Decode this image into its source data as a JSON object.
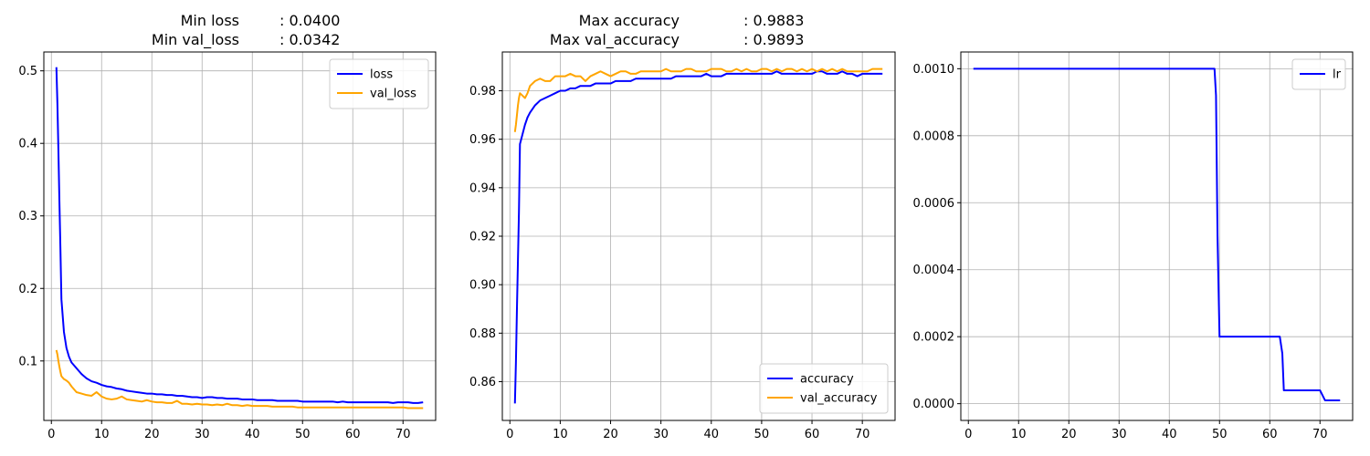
{
  "chart_data": [
    {
      "type": "line",
      "title_lines": [
        {
          "label": "Min loss",
          "value": ": 0.0400"
        },
        {
          "label": "Min val_loss",
          "value": ": 0.0342"
        }
      ],
      "xlabel": "",
      "ylabel": "",
      "xlim": [
        -1.5,
        76.5
      ],
      "ylim": [
        0.018,
        0.526
      ],
      "xticks": [
        0,
        10,
        20,
        30,
        40,
        50,
        60,
        70
      ],
      "yticks": [
        0.1,
        0.2,
        0.3,
        0.4,
        0.5
      ],
      "ytick_decimals": 1,
      "grid": true,
      "legend": "upper right",
      "x": [
        1,
        1.2,
        1.4,
        1.6,
        1.8,
        2,
        2.5,
        3,
        3.5,
        4,
        5,
        6,
        7,
        8,
        9,
        10,
        11,
        12,
        13,
        14,
        15,
        16,
        17,
        18,
        19,
        20,
        21,
        22,
        23,
        24,
        25,
        26,
        27,
        28,
        29,
        30,
        31,
        32,
        33,
        34,
        35,
        36,
        37,
        38,
        39,
        40,
        41,
        42,
        43,
        44,
        45,
        46,
        47,
        48,
        49,
        50,
        51,
        52,
        53,
        54,
        55,
        56,
        57,
        58,
        59,
        60,
        61,
        62,
        63,
        64,
        65,
        66,
        67,
        68,
        69,
        70,
        71,
        72,
        73,
        74
      ],
      "series": [
        {
          "name": "loss",
          "color": "#0000ff",
          "values": [
            0.505,
            0.455,
            0.39,
            0.32,
            0.255,
            0.185,
            0.14,
            0.118,
            0.106,
            0.098,
            0.09,
            0.082,
            0.076,
            0.072,
            0.07,
            0.067,
            0.065,
            0.064,
            0.062,
            0.061,
            0.059,
            0.058,
            0.057,
            0.056,
            0.055,
            0.055,
            0.054,
            0.054,
            0.053,
            0.053,
            0.052,
            0.052,
            0.051,
            0.05,
            0.05,
            0.049,
            0.05,
            0.05,
            0.049,
            0.049,
            0.048,
            0.048,
            0.048,
            0.047,
            0.047,
            0.047,
            0.046,
            0.046,
            0.046,
            0.046,
            0.045,
            0.045,
            0.045,
            0.045,
            0.045,
            0.044,
            0.044,
            0.044,
            0.044,
            0.044,
            0.044,
            0.044,
            0.043,
            0.044,
            0.043,
            0.043,
            0.043,
            0.043,
            0.043,
            0.043,
            0.043,
            0.043,
            0.043,
            0.042,
            0.043,
            0.043,
            0.043,
            0.042,
            0.042,
            0.043
          ]
        },
        {
          "name": "val_loss",
          "color": "#ffa500",
          "values": [
            0.115,
            0.109,
            0.1,
            0.092,
            0.085,
            0.079,
            0.075,
            0.073,
            0.07,
            0.065,
            0.057,
            0.055,
            0.053,
            0.052,
            0.057,
            0.051,
            0.048,
            0.047,
            0.048,
            0.051,
            0.047,
            0.046,
            0.045,
            0.044,
            0.046,
            0.044,
            0.043,
            0.043,
            0.042,
            0.042,
            0.045,
            0.041,
            0.041,
            0.04,
            0.041,
            0.04,
            0.04,
            0.039,
            0.04,
            0.039,
            0.041,
            0.039,
            0.039,
            0.038,
            0.039,
            0.038,
            0.038,
            0.038,
            0.038,
            0.037,
            0.037,
            0.037,
            0.037,
            0.037,
            0.036,
            0.036,
            0.036,
            0.036,
            0.036,
            0.036,
            0.036,
            0.036,
            0.036,
            0.036,
            0.036,
            0.036,
            0.036,
            0.036,
            0.036,
            0.036,
            0.036,
            0.036,
            0.036,
            0.036,
            0.036,
            0.036,
            0.035,
            0.035,
            0.035,
            0.035
          ]
        }
      ]
    },
    {
      "type": "line",
      "title_lines": [
        {
          "label": "Max accuracy",
          "value": ": 0.9883"
        },
        {
          "label": "Max val_accuracy",
          "value": ": 0.9893"
        }
      ],
      "xlabel": "",
      "ylabel": "",
      "xlim": [
        -1.5,
        76.5
      ],
      "ylim": [
        0.844,
        0.996
      ],
      "xticks": [
        0,
        10,
        20,
        30,
        40,
        50,
        60,
        70
      ],
      "yticks": [
        0.86,
        0.88,
        0.9,
        0.92,
        0.94,
        0.96,
        0.98
      ],
      "ytick_decimals": 2,
      "grid": true,
      "legend": "lower right",
      "x": [
        1,
        1.2,
        1.4,
        1.6,
        1.8,
        2,
        2.5,
        3,
        3.5,
        4,
        5,
        6,
        7,
        8,
        9,
        10,
        11,
        12,
        13,
        14,
        15,
        16,
        17,
        18,
        19,
        20,
        21,
        22,
        23,
        24,
        25,
        26,
        27,
        28,
        29,
        30,
        31,
        32,
        33,
        34,
        35,
        36,
        37,
        38,
        39,
        40,
        41,
        42,
        43,
        44,
        45,
        46,
        47,
        48,
        49,
        50,
        51,
        52,
        53,
        54,
        55,
        56,
        57,
        58,
        59,
        60,
        61,
        62,
        63,
        64,
        65,
        66,
        67,
        68,
        69,
        70,
        71,
        72,
        73,
        74
      ],
      "series": [
        {
          "name": "accuracy",
          "color": "#0000ff",
          "values": [
            0.851,
            0.868,
            0.89,
            0.91,
            0.93,
            0.958,
            0.962,
            0.966,
            0.969,
            0.971,
            0.974,
            0.976,
            0.977,
            0.978,
            0.979,
            0.98,
            0.98,
            0.981,
            0.981,
            0.982,
            0.982,
            0.982,
            0.983,
            0.983,
            0.983,
            0.983,
            0.984,
            0.984,
            0.984,
            0.984,
            0.985,
            0.985,
            0.985,
            0.985,
            0.985,
            0.985,
            0.985,
            0.985,
            0.986,
            0.986,
            0.986,
            0.986,
            0.986,
            0.986,
            0.987,
            0.986,
            0.986,
            0.986,
            0.987,
            0.987,
            0.987,
            0.987,
            0.987,
            0.987,
            0.987,
            0.987,
            0.987,
            0.987,
            0.988,
            0.987,
            0.987,
            0.987,
            0.987,
            0.987,
            0.987,
            0.987,
            0.988,
            0.988,
            0.987,
            0.987,
            0.987,
            0.988,
            0.987,
            0.987,
            0.986,
            0.987,
            0.987,
            0.987,
            0.987,
            0.987
          ]
        },
        {
          "name": "val_accuracy",
          "color": "#ffa500",
          "values": [
            0.963,
            0.966,
            0.97,
            0.974,
            0.977,
            0.979,
            0.978,
            0.977,
            0.979,
            0.982,
            0.984,
            0.985,
            0.984,
            0.984,
            0.986,
            0.986,
            0.986,
            0.987,
            0.986,
            0.986,
            0.984,
            0.986,
            0.987,
            0.988,
            0.987,
            0.986,
            0.987,
            0.988,
            0.988,
            0.987,
            0.987,
            0.988,
            0.988,
            0.988,
            0.988,
            0.988,
            0.989,
            0.988,
            0.988,
            0.988,
            0.989,
            0.989,
            0.988,
            0.988,
            0.988,
            0.989,
            0.989,
            0.989,
            0.988,
            0.988,
            0.989,
            0.988,
            0.989,
            0.988,
            0.988,
            0.989,
            0.989,
            0.988,
            0.989,
            0.988,
            0.989,
            0.989,
            0.988,
            0.989,
            0.988,
            0.989,
            0.988,
            0.989,
            0.988,
            0.989,
            0.988,
            0.989,
            0.988,
            0.988,
            0.988,
            0.988,
            0.988,
            0.989,
            0.989,
            0.989
          ]
        }
      ]
    },
    {
      "type": "line",
      "title_lines": [],
      "xlabel": "",
      "ylabel": "",
      "xlim": [
        -1.5,
        76.5
      ],
      "ylim": [
        -5e-05,
        0.00105
      ],
      "xticks": [
        0,
        10,
        20,
        30,
        40,
        50,
        60,
        70
      ],
      "yticks": [
        0.0,
        0.0002,
        0.0004,
        0.0006,
        0.0008,
        0.001
      ],
      "ytick_decimals": 4,
      "grid": true,
      "legend": "upper right",
      "x": [
        1,
        2,
        3,
        4,
        5,
        10,
        20,
        30,
        40,
        45,
        48,
        49,
        49.3,
        49.6,
        50,
        55,
        60,
        62,
        62.5,
        62.8,
        63,
        65,
        68,
        70,
        71,
        72,
        73,
        74
      ],
      "series": [
        {
          "name": "lr",
          "color": "#0000ff",
          "values": [
            0.001,
            0.001,
            0.001,
            0.001,
            0.001,
            0.001,
            0.001,
            0.001,
            0.001,
            0.001,
            0.001,
            0.001,
            0.00092,
            0.0005,
            0.0002,
            0.0002,
            0.0002,
            0.0002,
            0.00015,
            4e-05,
            4e-05,
            4e-05,
            4e-05,
            4e-05,
            1e-05,
            1e-05,
            1e-05,
            1e-05
          ]
        }
      ]
    }
  ]
}
